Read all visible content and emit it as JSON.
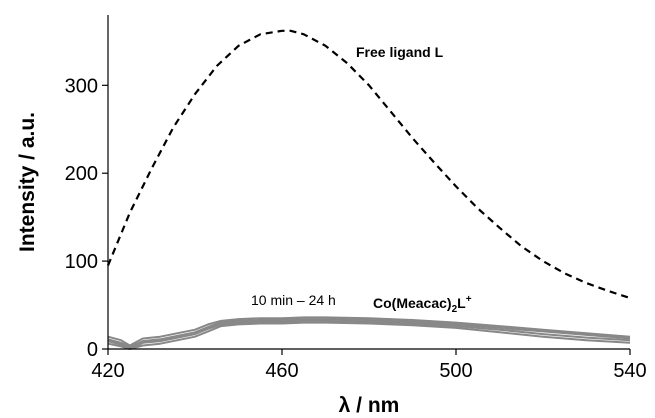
{
  "chart_data": {
    "type": "line",
    "title": "",
    "xlabel": "λ / nm",
    "ylabel": "Intensity / a.u.",
    "xlim": [
      420,
      540
    ],
    "ylim": [
      0,
      380
    ],
    "xticks": [
      420,
      460,
      500,
      540
    ],
    "yticks": [
      0,
      100,
      200,
      300
    ],
    "grid": false,
    "annotations": [
      {
        "text_main": "Free ligand L",
        "target": "free-ligand"
      },
      {
        "text_main": "10 min – 24 h",
        "target": "complex"
      },
      {
        "text_main": "Co(Meacac)",
        "subscript": "2",
        "text_tail": "L",
        "superscript": "+",
        "target": "complex"
      }
    ],
    "series": [
      {
        "id": "free-ligand",
        "color": "#000000",
        "dash": "dashed",
        "x": [
          420,
          425,
          430,
          435,
          440,
          445,
          450,
          455,
          460,
          462,
          465,
          470,
          475,
          480,
          485,
          490,
          495,
          500,
          505,
          510,
          515,
          520,
          525,
          530,
          535,
          540
        ],
        "y": [
          95,
          155,
          205,
          252,
          290,
          322,
          345,
          358,
          362,
          362,
          358,
          345,
          325,
          300,
          270,
          240,
          212,
          185,
          160,
          138,
          117,
          100,
          86,
          75,
          66,
          58
        ]
      },
      {
        "id": "complex",
        "color": "#888888",
        "x": [
          420,
          423,
          425,
          428,
          432,
          436,
          440,
          443,
          446,
          450,
          455,
          460,
          465,
          470,
          480,
          490,
          500,
          510,
          520,
          530,
          540
        ],
        "y": [
          14,
          10,
          4,
          12,
          14,
          18,
          22,
          28,
          32,
          34,
          35,
          35,
          36,
          36,
          35,
          33,
          30,
          26,
          22,
          18,
          14
        ]
      },
      {
        "id": "complex",
        "color": "#888888",
        "x": [
          420,
          423,
          425,
          428,
          432,
          436,
          440,
          443,
          446,
          450,
          455,
          460,
          465,
          470,
          480,
          490,
          500,
          510,
          520,
          530,
          540
        ],
        "y": [
          11,
          7,
          2,
          9,
          11,
          15,
          19,
          25,
          30,
          32,
          33,
          33,
          34,
          34,
          33,
          31,
          28,
          24,
          20,
          16,
          12
        ]
      },
      {
        "id": "complex",
        "color": "#888888",
        "x": [
          420,
          423,
          425,
          428,
          432,
          436,
          440,
          443,
          446,
          450,
          455,
          460,
          465,
          470,
          480,
          490,
          500,
          510,
          520,
          530,
          540
        ],
        "y": [
          9,
          5,
          0,
          7,
          9,
          13,
          17,
          23,
          28,
          30,
          31,
          31,
          32,
          32,
          31,
          29,
          26,
          22,
          17,
          13,
          10
        ]
      },
      {
        "id": "complex",
        "color": "#888888",
        "x": [
          420,
          423,
          425,
          428,
          432,
          436,
          440,
          443,
          446,
          450,
          455,
          460,
          465,
          470,
          480,
          490,
          500,
          510,
          520,
          530,
          540
        ],
        "y": [
          6,
          3,
          0,
          4,
          6,
          10,
          14,
          20,
          26,
          28,
          29,
          29,
          30,
          30,
          29,
          27,
          24,
          19,
          14,
          10,
          7
        ]
      }
    ]
  }
}
